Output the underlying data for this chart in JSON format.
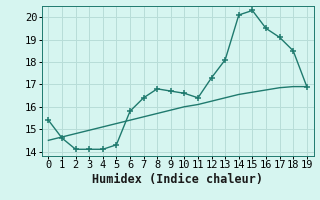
{
  "xlabel": "Humidex (Indice chaleur)",
  "bg_color": "#d6f5f0",
  "line_color": "#1f7a6e",
  "grid_color": "#b8ddd8",
  "x_data": [
    0,
    1,
    2,
    3,
    4,
    5,
    6,
    7,
    8,
    9,
    10,
    11,
    12,
    13,
    14,
    15,
    16,
    17,
    18,
    19
  ],
  "y_data": [
    15.4,
    14.6,
    14.1,
    14.1,
    14.1,
    14.3,
    15.8,
    16.4,
    16.8,
    16.7,
    16.6,
    16.4,
    17.3,
    18.1,
    20.1,
    20.3,
    19.5,
    19.1,
    18.5,
    16.9
  ],
  "y_linear": [
    14.5,
    14.65,
    14.8,
    14.95,
    15.1,
    15.25,
    15.4,
    15.55,
    15.7,
    15.85,
    16.0,
    16.1,
    16.25,
    16.4,
    16.55,
    16.65,
    16.75,
    16.85,
    16.9,
    16.9
  ],
  "ylim": [
    13.8,
    20.5
  ],
  "xlim": [
    -0.5,
    19.5
  ],
  "yticks": [
    14,
    15,
    16,
    17,
    18,
    19,
    20
  ],
  "xticks": [
    0,
    1,
    2,
    3,
    4,
    5,
    6,
    7,
    8,
    9,
    10,
    11,
    12,
    13,
    14,
    15,
    16,
    17,
    18,
    19
  ],
  "markersize": 4,
  "linewidth": 1.0,
  "tick_fontsize": 7.5,
  "xlabel_fontsize": 8.5
}
